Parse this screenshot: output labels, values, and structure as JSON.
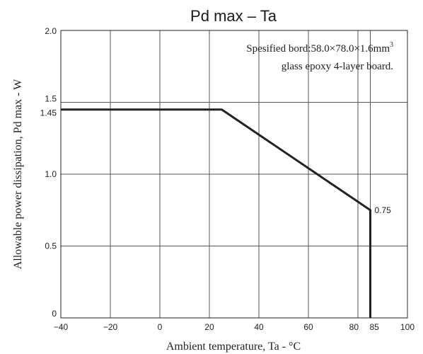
{
  "chart_data": {
    "type": "line",
    "title": "Pd max  –  Ta",
    "xlabel": "Ambient temperature, Ta - °C",
    "ylabel": "Allowable power dissipation, Pd max - W",
    "xlim": [
      -40,
      100
    ],
    "ylim": [
      0,
      2.0
    ],
    "x_ticks": [
      {
        "value": -40,
        "label": "−40"
      },
      {
        "value": -20,
        "label": "−20"
      },
      {
        "value": 0,
        "label": "0"
      },
      {
        "value": 20,
        "label": "20"
      },
      {
        "value": 40,
        "label": "40"
      },
      {
        "value": 60,
        "label": "60"
      },
      {
        "value": 80,
        "label": "80"
      },
      {
        "value": 85,
        "label": "85"
      },
      {
        "value": 100,
        "label": "100"
      }
    ],
    "y_ticks": [
      {
        "value": 0,
        "label": "0"
      },
      {
        "value": 0.5,
        "label": "0.5"
      },
      {
        "value": 1.0,
        "label": "1.0"
      },
      {
        "value": 1.45,
        "label": "1.45"
      },
      {
        "value": 1.5,
        "label": "1.5"
      },
      {
        "value": 2.0,
        "label": "2.0"
      }
    ],
    "grid": true,
    "series": [
      {
        "x": [
          -40,
          25,
          85,
          85
        ],
        "y": [
          1.45,
          1.45,
          0.75,
          0
        ]
      }
    ],
    "data_labels": [
      {
        "x": 85,
        "y": 0.75,
        "text": "0.75"
      }
    ],
    "annotation": {
      "line1": "Spesified bord:58.0×78.0×1.6mm",
      "line1_sup": "3",
      "line2": "glass epoxy 4-layer board."
    }
  }
}
